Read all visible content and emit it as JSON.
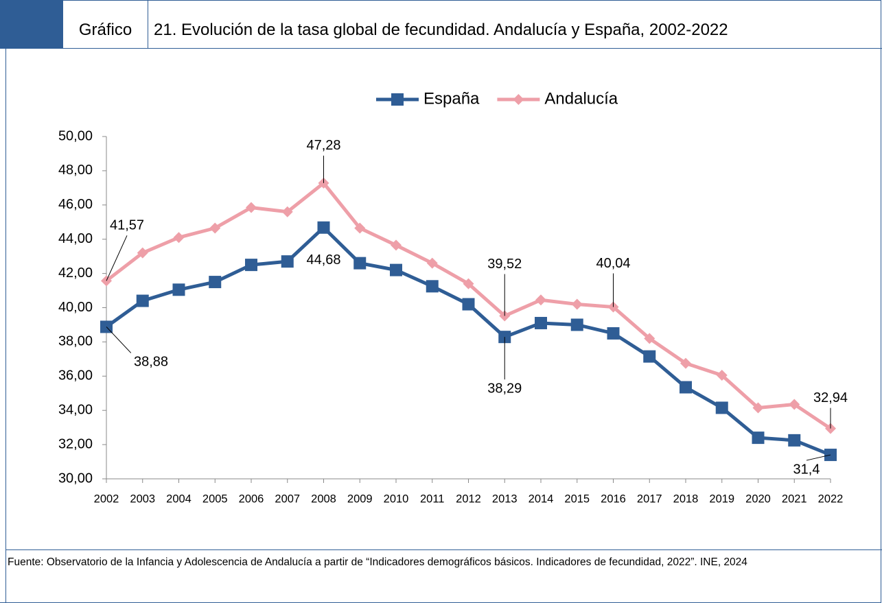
{
  "header": {
    "label": "Gráfico"
  },
  "footer": {
    "source": "Fuente: Observatorio de la Infancia y Adolescencia de Andalucía a partir de “Indicadores demográficos básicos. Indicadores de fecundidad, 2022”. INE, 2024"
  },
  "chart_data": {
    "type": "line",
    "title": "21. Evolución de la tasa global de fecundidad. Andalucía y España, 2002-2022",
    "categories": [
      "2002",
      "2003",
      "2004",
      "2005",
      "2006",
      "2007",
      "2008",
      "2009",
      "2010",
      "2011",
      "2012",
      "2013",
      "2014",
      "2015",
      "2016",
      "2017",
      "2018",
      "2019",
      "2020",
      "2021",
      "2022"
    ],
    "series": [
      {
        "name": "España",
        "color": "#2f5d95",
        "marker": "square",
        "values": [
          38.88,
          40.4,
          41.05,
          41.5,
          42.5,
          42.7,
          44.68,
          42.6,
          42.2,
          41.25,
          40.2,
          38.29,
          39.1,
          39.0,
          38.5,
          37.15,
          35.35,
          34.15,
          32.4,
          32.25,
          31.4
        ],
        "value_labels": [
          "38,88",
          null,
          null,
          null,
          null,
          null,
          "44,68",
          null,
          null,
          null,
          null,
          "38,29",
          null,
          null,
          null,
          null,
          null,
          null,
          null,
          null,
          "31,4"
        ]
      },
      {
        "name": "Andalucía",
        "color": "#ee9fa8",
        "marker": "diamond",
        "values": [
          41.57,
          43.2,
          44.1,
          44.65,
          45.85,
          45.6,
          47.28,
          44.65,
          43.65,
          42.6,
          41.4,
          39.52,
          40.45,
          40.2,
          40.04,
          38.2,
          36.75,
          36.05,
          34.15,
          34.35,
          32.94
        ],
        "value_labels": [
          "41,57",
          null,
          null,
          null,
          null,
          null,
          "47,28",
          null,
          null,
          null,
          null,
          "39,52",
          null,
          null,
          "40,04",
          null,
          null,
          null,
          null,
          null,
          "32,94"
        ]
      }
    ],
    "ylim": [
      30,
      50
    ],
    "yticks": [
      {
        "value": 30,
        "label": "30,00"
      },
      {
        "value": 32,
        "label": "32,00"
      },
      {
        "value": 34,
        "label": "34,00"
      },
      {
        "value": 36,
        "label": "36,00"
      },
      {
        "value": 38,
        "label": "38,00"
      },
      {
        "value": 40,
        "label": "40,00"
      },
      {
        "value": 42,
        "label": "42,00"
      },
      {
        "value": 44,
        "label": "44,00"
      },
      {
        "value": 46,
        "label": "46,00"
      },
      {
        "value": 48,
        "label": "48,00"
      },
      {
        "value": 50,
        "label": "50,00"
      }
    ],
    "legend": "top"
  }
}
